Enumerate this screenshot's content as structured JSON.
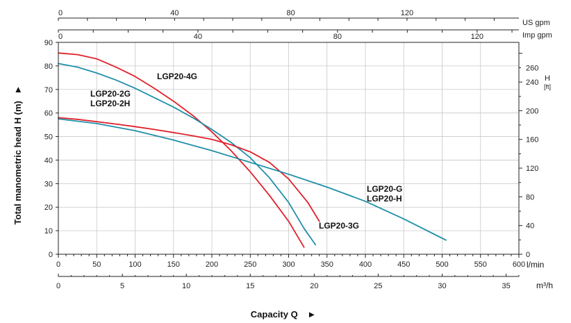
{
  "chart_data": {
    "type": "line",
    "ylabel": "Total manometric head H (m)",
    "xlabel": "Capacity Q",
    "arrow_glyph": "►",
    "axes": {
      "left": {
        "unit": "m",
        "min": 0,
        "max": 90,
        "ticks": [
          0,
          10,
          20,
          30,
          40,
          50,
          60,
          70,
          80,
          90
        ]
      },
      "right": {
        "unit": "H",
        "unit_sub": "[ft]",
        "ticks": [
          0,
          40,
          80,
          120,
          160,
          200,
          240,
          260
        ]
      },
      "bottom_lmin": {
        "unit": "l/min",
        "min": 0,
        "max": 600,
        "ticks": [
          0,
          50,
          100,
          150,
          200,
          250,
          300,
          350,
          400,
          450,
          500,
          550,
          600
        ]
      },
      "bottom_m3h": {
        "unit": "m³/h",
        "ticks": [
          0,
          5,
          10,
          15,
          20,
          25,
          30,
          35
        ]
      },
      "top_usgpm": {
        "unit": "US gpm",
        "ticks": [
          0,
          40,
          80,
          120
        ]
      },
      "top_impgpm": {
        "unit": "Imp gpm",
        "ticks": [
          0,
          40,
          80,
          120
        ]
      }
    },
    "series": [
      {
        "name": "LGP20-4G",
        "color": "#e0202a",
        "label": "LGP20-4G",
        "x": [
          0,
          25,
          50,
          75,
          100,
          125,
          150,
          175,
          200,
          225,
          250,
          275,
          300,
          320
        ],
        "y": [
          85.5,
          84.8,
          83,
          79.5,
          75.5,
          70.5,
          65,
          59,
          52,
          44,
          35,
          25,
          14,
          3
        ]
      },
      {
        "name": "LGP20-2G / LGP20-2H",
        "color": "#1f8fa8",
        "label": [
          "LGP20-2G",
          "LGP20-2H"
        ],
        "x": [
          0,
          25,
          50,
          75,
          100,
          125,
          150,
          175,
          200,
          225,
          250,
          275,
          300,
          320,
          335
        ],
        "y": [
          81,
          79.5,
          77,
          74,
          70.5,
          66.5,
          62.5,
          58,
          53,
          47.5,
          41,
          32.5,
          22,
          11,
          4
        ]
      },
      {
        "name": "LGP20-3G",
        "color": "#e0202a",
        "label": "LGP20-3G",
        "x": [
          0,
          25,
          50,
          75,
          100,
          125,
          150,
          175,
          200,
          225,
          250,
          275,
          300,
          325,
          340
        ],
        "y": [
          58,
          57.3,
          56.3,
          55.3,
          54.2,
          53,
          51.7,
          50.3,
          48.8,
          46.5,
          43.5,
          39,
          32,
          22,
          14
        ]
      },
      {
        "name": "LGP20-G / LGP20-H",
        "color": "#1f8fa8",
        "label": [
          "LGP20-G",
          "LGP20-H"
        ],
        "x": [
          0,
          50,
          100,
          150,
          200,
          250,
          300,
          350,
          400,
          450,
          505
        ],
        "y": [
          57.5,
          55.5,
          52.5,
          48.5,
          44,
          39,
          34,
          28.5,
          22.5,
          15,
          6
        ]
      }
    ]
  }
}
